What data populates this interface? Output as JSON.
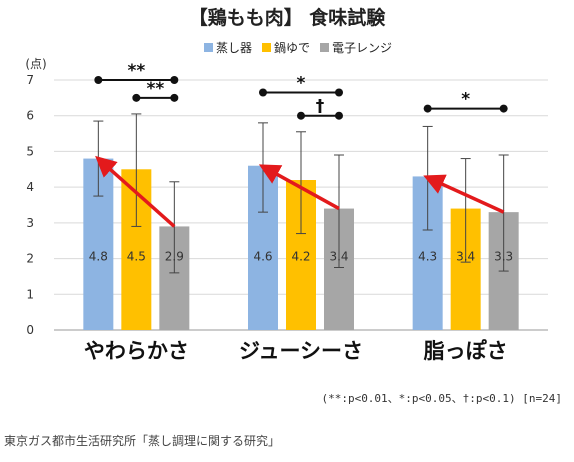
{
  "chart_data": {
    "type": "bar",
    "title": "【鶏もも肉】 食味試験",
    "ylabel": "(点)",
    "ylim": [
      0,
      7
    ],
    "yticks": [
      "0",
      "1",
      "2",
      "3",
      "4",
      "5",
      "6",
      "7"
    ],
    "grid": true,
    "legend_position": "top",
    "categories": [
      "やわらかさ",
      "ジューシーさ",
      "脂っぽさ"
    ],
    "series": [
      {
        "name": "蒸し器",
        "color": "#8db4e2",
        "values": [
          4.8,
          4.6,
          4.3
        ],
        "labels": [
          "4.8",
          "4.6",
          "4.3"
        ],
        "err_low": [
          3.75,
          3.3,
          2.8
        ],
        "err_high": [
          5.85,
          5.8,
          5.7
        ]
      },
      {
        "name": "鍋ゆで",
        "color": "#ffc000",
        "values": [
          4.5,
          4.2,
          3.4
        ],
        "labels": [
          "4.5",
          "4.2",
          "3.4"
        ],
        "err_low": [
          2.9,
          2.7,
          1.9
        ],
        "err_high": [
          6.05,
          5.55,
          4.8
        ]
      },
      {
        "name": "電子レンジ",
        "color": "#a6a6a6",
        "values": [
          2.9,
          3.4,
          3.3
        ],
        "labels": [
          "2.9",
          "3.4",
          "3.3"
        ],
        "err_low": [
          1.6,
          1.75,
          1.65
        ],
        "err_high": [
          4.15,
          4.9,
          4.9
        ]
      }
    ],
    "significance": [
      {
        "category": 0,
        "from": 0,
        "to": 2,
        "y": 7.0,
        "label": "**"
      },
      {
        "category": 0,
        "from": 1,
        "to": 2,
        "y": 6.5,
        "label": "**"
      },
      {
        "category": 1,
        "from": 0,
        "to": 2,
        "y": 6.65,
        "label": "*"
      },
      {
        "category": 1,
        "from": 1,
        "to": 2,
        "y": 6.0,
        "label": "†"
      },
      {
        "category": 2,
        "from": 0,
        "to": 2,
        "y": 6.2,
        "label": "*"
      }
    ],
    "arrows": [
      {
        "category": 0,
        "from_series": 2,
        "to_series": 0,
        "from_value": 2.9,
        "to_value": 4.8
      },
      {
        "category": 1,
        "from_series": 2,
        "to_series": 0,
        "from_value": 3.4,
        "to_value": 4.6
      },
      {
        "category": 2,
        "from_series": 2,
        "to_series": 0,
        "from_value": 3.3,
        "to_value": 4.3
      }
    ],
    "arrow_color": "#e31a1c",
    "note": "(**:p<0.01、*:p<0.05、†:p<0.1) [n=24]",
    "source": "東京ガス都市生活研究所「蒸し調理に関する研究」"
  }
}
